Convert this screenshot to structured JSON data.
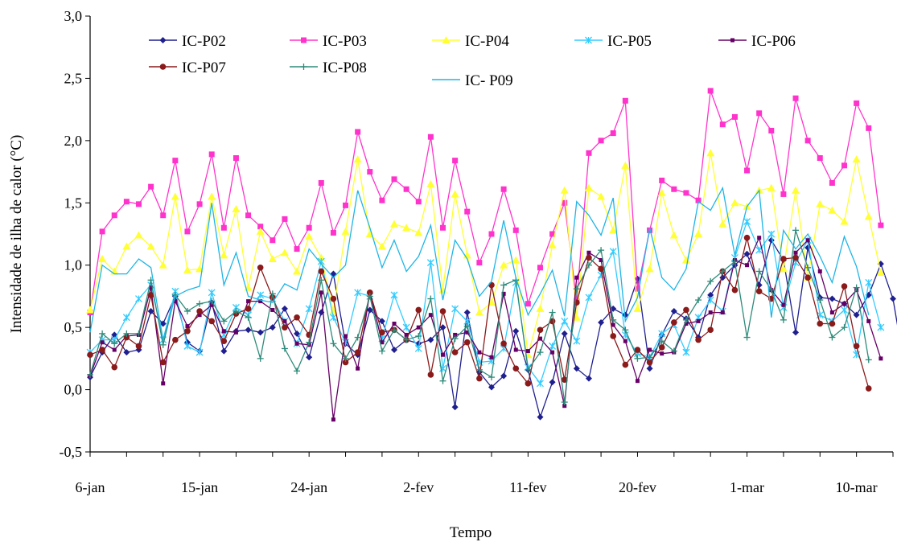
{
  "chart_data": {
    "type": "line",
    "title": "",
    "xlabel": "Tempo",
    "ylabel": "Intensidade de ilha de calor (°C)",
    "ylim": [
      -0.5,
      3.0
    ],
    "yticks": [
      "-0,5",
      "0,0",
      "0,5",
      "1,0",
      "1,5",
      "2,0",
      "2,5",
      "3,0"
    ],
    "x_start": "6-jan",
    "x_end": "12-mar",
    "xtick_labels": [
      "6-jan",
      "15-jan",
      "24-jan",
      "2-fev",
      "11-fev",
      "20-fev",
      "1-mar",
      "10-mar"
    ],
    "legend_position": "top-left inside",
    "grid": false,
    "series": [
      {
        "name": "IC-P02",
        "color": "#1f1f8f",
        "marker": "diamond",
        "values": [
          0.1,
          0.3,
          0.44,
          0.3,
          0.32,
          0.63,
          0.53,
          0.75,
          0.38,
          0.31,
          0.7,
          0.31,
          0.47,
          0.48,
          0.46,
          0.5,
          0.65,
          0.45,
          0.26,
          0.62,
          0.93,
          0.37,
          0.28,
          0.64,
          0.55,
          0.32,
          0.4,
          0.37,
          0.4,
          0.5,
          -0.14,
          0.62,
          0.14,
          0.02,
          0.11,
          0.47,
          0.16,
          -0.22,
          0.06,
          0.45,
          0.17,
          0.09,
          0.54,
          0.65,
          0.6,
          0.89,
          0.17,
          0.44,
          0.63,
          0.57,
          0.42,
          0.76,
          0.9,
          1.0,
          1.09,
          0.84,
          1.2,
          1.04,
          0.46,
          1.14,
          0.74,
          0.73,
          0.69,
          0.6,
          0.76,
          1.01,
          0.73,
          0.16
        ]
      },
      {
        "name": "IC-P03",
        "color": "#ff33cc",
        "marker": "square",
        "values": [
          0.62,
          1.27,
          1.4,
          1.51,
          1.49,
          1.63,
          1.4,
          1.84,
          1.27,
          1.49,
          1.89,
          1.3,
          1.86,
          1.4,
          1.31,
          1.2,
          1.37,
          1.13,
          1.3,
          1.66,
          1.26,
          1.48,
          2.07,
          1.75,
          1.52,
          1.69,
          1.61,
          1.51,
          2.03,
          1.3,
          1.84,
          1.43,
          1.02,
          1.25,
          1.61,
          1.28,
          0.69,
          0.98,
          1.25,
          1.5,
          0.71,
          1.9,
          2.0,
          2.06,
          2.32,
          0.81,
          1.28,
          1.68,
          1.61,
          1.58,
          1.52,
          2.4,
          2.13,
          2.19,
          1.76,
          2.22,
          2.08,
          1.57,
          2.34,
          2.0,
          1.86,
          1.66,
          1.8,
          2.3,
          2.1,
          1.32
        ]
      },
      {
        "name": "IC-P04",
        "color": "#ffff33",
        "marker": "triangle",
        "values": [
          0.64,
          1.05,
          0.95,
          1.15,
          1.24,
          1.15,
          1.0,
          1.55,
          0.96,
          0.97,
          1.55,
          1.08,
          1.45,
          0.82,
          1.27,
          1.05,
          1.1,
          0.95,
          1.23,
          1.06,
          0.63,
          1.27,
          1.85,
          1.25,
          1.15,
          1.33,
          1.3,
          1.26,
          1.65,
          0.8,
          1.57,
          1.08,
          0.62,
          0.7,
          1.0,
          1.04,
          0.28,
          0.65,
          1.16,
          1.6,
          0.58,
          1.62,
          1.55,
          1.28,
          1.8,
          0.65,
          0.97,
          1.58,
          1.24,
          1.04,
          1.25,
          1.9,
          1.33,
          1.5,
          1.47,
          1.6,
          1.62,
          0.97,
          1.6,
          0.9,
          1.49,
          1.44,
          1.35,
          1.85,
          1.39,
          0.94
        ]
      },
      {
        "name": "IC-P05",
        "color": "#33ccff",
        "marker": "star",
        "values": [
          0.3,
          0.4,
          0.4,
          0.58,
          0.73,
          0.84,
          0.4,
          0.79,
          0.35,
          0.3,
          0.78,
          0.44,
          0.66,
          0.6,
          0.76,
          0.73,
          0.55,
          0.37,
          0.65,
          1.03,
          0.58,
          0.38,
          0.78,
          0.75,
          0.41,
          0.76,
          0.5,
          0.33,
          1.02,
          0.17,
          0.65,
          0.55,
          0.22,
          0.23,
          0.33,
          0.86,
          0.18,
          0.05,
          0.35,
          0.55,
          0.39,
          0.74,
          0.92,
          1.11,
          0.44,
          0.29,
          0.26,
          0.45,
          0.52,
          0.3,
          0.58,
          0.72,
          0.63,
          1.06,
          1.35,
          1.12,
          1.25,
          0.66,
          1.02,
          1.2,
          0.6,
          0.55,
          0.64,
          0.28,
          0.86,
          0.5
        ]
      },
      {
        "name": "IC-P06",
        "color": "#660066",
        "marker": "square-small",
        "values": [
          0.11,
          0.38,
          0.32,
          0.43,
          0.44,
          0.82,
          0.05,
          0.71,
          0.51,
          0.6,
          0.68,
          0.47,
          0.46,
          0.71,
          0.71,
          0.64,
          0.55,
          0.37,
          0.36,
          0.78,
          -0.24,
          0.43,
          0.17,
          0.78,
          0.38,
          0.53,
          0.44,
          0.5,
          0.6,
          0.28,
          0.44,
          0.46,
          0.3,
          0.26,
          0.77,
          0.32,
          0.31,
          0.41,
          0.3,
          -0.13,
          0.9,
          1.1,
          1.04,
          0.52,
          0.39,
          0.07,
          0.32,
          0.29,
          0.3,
          0.53,
          0.55,
          0.62,
          0.62,
          1.04,
          1.0,
          1.22,
          0.8,
          0.68,
          1.1,
          1.2,
          0.95,
          0.62,
          0.69,
          0.8,
          0.55,
          0.25
        ]
      },
      {
        "name": "IC-P07",
        "color": "#8b1a1a",
        "marker": "circle",
        "values": [
          0.28,
          0.32,
          0.18,
          0.42,
          0.35,
          0.76,
          0.22,
          0.4,
          0.47,
          0.63,
          0.55,
          0.39,
          0.61,
          0.65,
          0.98,
          0.74,
          0.5,
          0.58,
          0.44,
          0.95,
          0.73,
          0.22,
          0.3,
          0.78,
          0.46,
          0.48,
          0.4,
          0.64,
          0.12,
          0.63,
          0.3,
          0.38,
          0.09,
          0.84,
          0.37,
          0.17,
          0.05,
          0.48,
          0.55,
          0.08,
          0.7,
          1.06,
          0.97,
          0.43,
          0.2,
          0.32,
          0.22,
          0.34,
          0.54,
          0.64,
          0.4,
          0.48,
          0.95,
          0.8,
          1.22,
          0.79,
          0.73,
          1.05,
          1.06,
          0.9,
          0.53,
          0.53,
          0.83,
          0.35,
          0.01
        ]
      },
      {
        "name": "IC-P08",
        "color": "#2e8b7a",
        "marker": "plus",
        "values": [
          0.12,
          0.45,
          0.37,
          0.45,
          0.45,
          0.88,
          0.36,
          0.76,
          0.63,
          0.69,
          0.71,
          0.55,
          0.63,
          0.58,
          0.25,
          0.77,
          0.33,
          0.15,
          0.38,
          0.88,
          0.37,
          0.25,
          0.42,
          0.75,
          0.31,
          0.48,
          0.4,
          0.43,
          0.73,
          0.07,
          0.41,
          0.51,
          0.16,
          0.1,
          0.84,
          0.88,
          0.16,
          0.3,
          0.62,
          -0.1,
          0.81,
          1.0,
          1.12,
          0.56,
          0.48,
          0.25,
          0.26,
          0.39,
          0.31,
          0.56,
          0.72,
          0.87,
          0.95,
          1.03,
          0.42,
          0.95,
          0.8,
          0.56,
          1.28,
          0.98,
          0.72,
          0.42,
          0.5,
          0.82,
          0.24
        ]
      },
      {
        "name": "IC- P09",
        "color": "#1fb5e6",
        "marker": "none",
        "values": [
          0.46,
          1.0,
          0.93,
          0.93,
          1.05,
          0.98,
          0.4,
          0.75,
          0.8,
          0.83,
          1.5,
          0.84,
          1.1,
          0.75,
          0.72,
          0.7,
          0.85,
          0.8,
          1.13,
          1.01,
          0.9,
          1.0,
          1.6,
          1.3,
          0.98,
          1.2,
          0.95,
          1.07,
          1.32,
          0.72,
          1.2,
          1.05,
          0.75,
          0.87,
          1.36,
          0.9,
          0.6,
          0.77,
          0.96,
          0.59,
          1.51,
          1.4,
          1.24,
          1.54,
          0.55,
          0.74,
          1.3,
          0.9,
          0.8,
          0.97,
          1.51,
          1.44,
          1.62,
          1.08,
          1.47,
          1.6,
          0.58,
          1.28,
          1.13,
          1.25,
          1.07,
          0.86,
          1.23,
          0.99,
          0.6
        ]
      }
    ]
  }
}
